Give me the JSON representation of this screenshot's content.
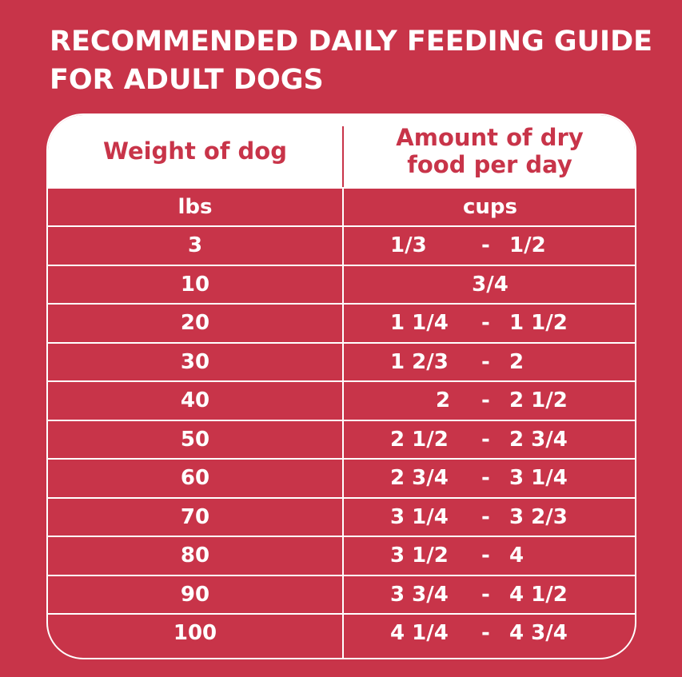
{
  "title": "RECOMMENDED DAILY FEEDING GUIDE FOR ADULT DOGS",
  "colors": {
    "background": "#c83449",
    "header_background": "#ffffff",
    "text": "#ffffff",
    "header_text": "#c83449"
  },
  "table": {
    "headers": {
      "weight": "Weight of dog",
      "amount": "Amount of dry food per day"
    },
    "units": {
      "weight": "lbs",
      "amount": "cups"
    },
    "rows": [
      {
        "weight": "3",
        "min": "1/3",
        "dash": "-",
        "max": "1/2"
      },
      {
        "weight": "10",
        "single": "3/4"
      },
      {
        "weight": "20",
        "min": "1 1/4",
        "dash": "-",
        "max": "1 1/2"
      },
      {
        "weight": "30",
        "min": "1 2/3",
        "dash": "-",
        "max": "2"
      },
      {
        "weight": "40",
        "min": "2",
        "dash": "-",
        "max": "2 1/2"
      },
      {
        "weight": "50",
        "min": "2 1/2",
        "dash": "-",
        "max": "2 3/4"
      },
      {
        "weight": "60",
        "min": "2 3/4",
        "dash": "-",
        "max": "3 1/4"
      },
      {
        "weight": "70",
        "min": "3 1/4",
        "dash": "-",
        "max": "3 2/3"
      },
      {
        "weight": "80",
        "min": "3 1/2",
        "dash": "-",
        "max": "4"
      },
      {
        "weight": "90",
        "min": "3 3/4",
        "dash": "-",
        "max": "4 1/2"
      },
      {
        "weight": "100",
        "min": "4 1/4",
        "dash": "-",
        "max": "4 3/4"
      }
    ]
  }
}
